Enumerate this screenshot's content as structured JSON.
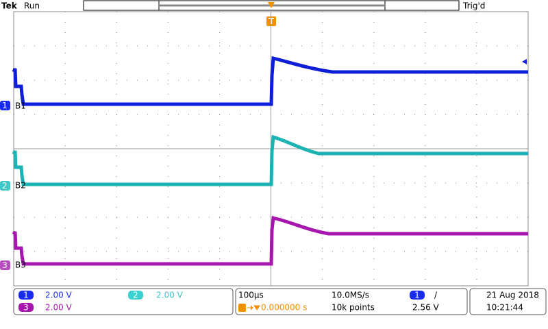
{
  "header": {
    "brand": "Tek",
    "status": "Run",
    "trigger_status": "Trig'd"
  },
  "trigger_marker": "T",
  "channel_markers": [
    "1",
    "2",
    "3"
  ],
  "trace_labels": [
    "B1",
    "B2",
    "B3"
  ],
  "readout": {
    "channels": [
      {
        "number": "1",
        "scale": "2.00 V"
      },
      {
        "number": "2",
        "scale": "2.00 V"
      },
      {
        "number": "3",
        "scale": "2.00 V"
      }
    ],
    "timebase": "100µs",
    "sample_rate": "10.0MS/s",
    "trigger_position": "0.000000 s",
    "record_length": "10k points",
    "trigger_source": "1",
    "trigger_slope": "/",
    "trigger_level": "2.56 V",
    "date": "21 Aug 2018",
    "time": "10:21:44"
  }
}
